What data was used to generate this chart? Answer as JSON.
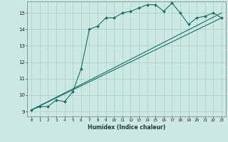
{
  "xlabel": "Humidex (Indice chaleur)",
  "bg_color": "#cce8e4",
  "grid_color": "#aad4cc",
  "line_color": "#1a7060",
  "xlim": [
    -0.5,
    23.5
  ],
  "ylim": [
    8.7,
    15.7
  ],
  "yticks": [
    9,
    10,
    11,
    12,
    13,
    14,
    15
  ],
  "xticks": [
    0,
    1,
    2,
    3,
    4,
    5,
    6,
    7,
    8,
    9,
    10,
    11,
    12,
    13,
    14,
    15,
    16,
    17,
    18,
    19,
    20,
    21,
    22,
    23
  ],
  "curve1_x": [
    0,
    1,
    2,
    3,
    4,
    5,
    6,
    7,
    8,
    9,
    10,
    11,
    12,
    13,
    14,
    15,
    16,
    17,
    18,
    19,
    20,
    21,
    22,
    23
  ],
  "curve1_y": [
    9.1,
    9.3,
    9.3,
    9.7,
    9.6,
    10.2,
    11.6,
    14.0,
    14.2,
    14.7,
    14.7,
    15.0,
    15.1,
    15.3,
    15.5,
    15.5,
    15.1,
    15.6,
    15.0,
    14.3,
    14.7,
    14.8,
    15.0,
    14.7
  ],
  "line1_x": [
    0,
    23
  ],
  "line1_y": [
    9.1,
    14.7
  ],
  "line2_x": [
    0,
    23
  ],
  "line2_y": [
    9.1,
    15.0
  ]
}
